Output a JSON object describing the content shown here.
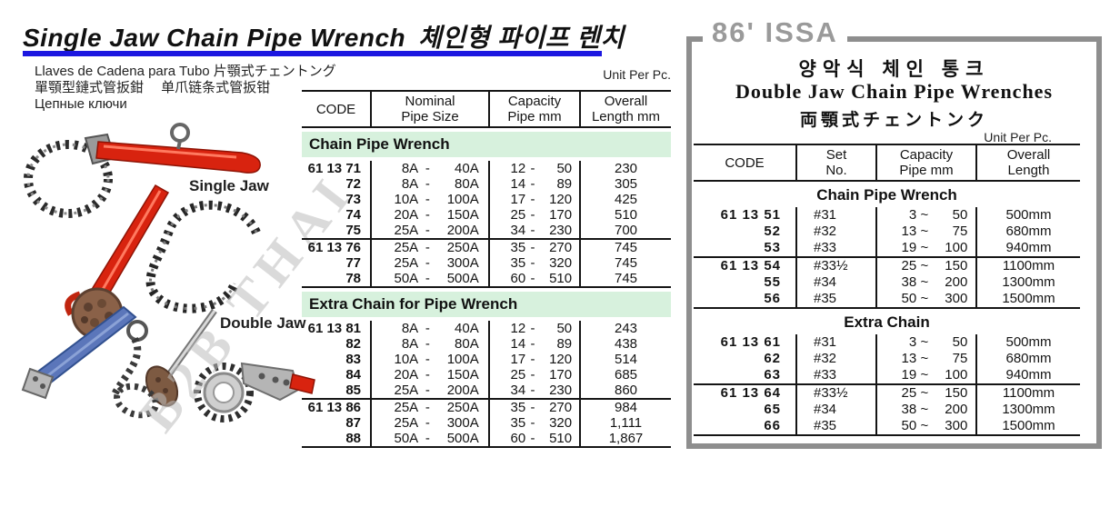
{
  "left": {
    "title_en": "Single Jaw Chain Pipe Wrench",
    "title_ko": "체인형 파이프 렌치",
    "subtitle_es_ja": "Llaves de Cadena para Tubo  片顎式チェントング",
    "subtitle_zh": "單顎型鏈式管扳鉗　 单爪链条式管扳钳",
    "subtitle_ru": "Цепные ключи",
    "unit_label": "Unit Per Pc.",
    "single_jaw_label": "Single Jaw",
    "double_jaw_label": "Double Jaw",
    "watermark": "B2B THAI"
  },
  "colors": {
    "section_green": "#d7f1dd",
    "title_rule_blue": "#1c17e0",
    "box_border_gray": "#8e8e8e",
    "badge_gray": "#9a9a9a",
    "wrench_red": "#d8230f",
    "handle_blue": "#5b76ba"
  },
  "middle_table": {
    "headers": [
      [
        "CODE"
      ],
      [
        "Nominal",
        "Pipe Size"
      ],
      [
        "Capacity",
        "Pipe mm"
      ],
      [
        "Overall",
        "Length mm"
      ]
    ],
    "sections": [
      {
        "title": "Chain Pipe Wrench",
        "groups": [
          {
            "rows": [
              {
                "code": "61 13 71",
                "nominal": [
                  "8A",
                  "40A"
                ],
                "capacity": [
                  "12",
                  "50"
                ],
                "length": "230"
              },
              {
                "code": "72",
                "nominal": [
                  "8A",
                  "80A"
                ],
                "capacity": [
                  "14",
                  "89"
                ],
                "length": "305"
              },
              {
                "code": "73",
                "nominal": [
                  "10A",
                  "100A"
                ],
                "capacity": [
                  "17",
                  "120"
                ],
                "length": "425"
              },
              {
                "code": "74",
                "nominal": [
                  "20A",
                  "150A"
                ],
                "capacity": [
                  "25",
                  "170"
                ],
                "length": "510"
              },
              {
                "code": "75",
                "nominal": [
                  "25A",
                  "200A"
                ],
                "capacity": [
                  "34",
                  "230"
                ],
                "length": "700"
              }
            ]
          },
          {
            "rows": [
              {
                "code": "61 13 76",
                "nominal": [
                  "25A",
                  "250A"
                ],
                "capacity": [
                  "35",
                  "270"
                ],
                "length": "745"
              },
              {
                "code": "77",
                "nominal": [
                  "25A",
                  "300A"
                ],
                "capacity": [
                  "35",
                  "320"
                ],
                "length": "745"
              },
              {
                "code": "78",
                "nominal": [
                  "50A",
                  "500A"
                ],
                "capacity": [
                  "60",
                  "510"
                ],
                "length": "745"
              }
            ]
          }
        ]
      },
      {
        "title": "Extra Chain for Pipe Wrench",
        "groups": [
          {
            "rows": [
              {
                "code": "61 13 81",
                "nominal": [
                  "8A",
                  "40A"
                ],
                "capacity": [
                  "12",
                  "50"
                ],
                "length": "243"
              },
              {
                "code": "82",
                "nominal": [
                  "8A",
                  "80A"
                ],
                "capacity": [
                  "14",
                  "89"
                ],
                "length": "438"
              },
              {
                "code": "83",
                "nominal": [
                  "10A",
                  "100A"
                ],
                "capacity": [
                  "17",
                  "120"
                ],
                "length": "514"
              },
              {
                "code": "84",
                "nominal": [
                  "20A",
                  "150A"
                ],
                "capacity": [
                  "25",
                  "170"
                ],
                "length": "685"
              },
              {
                "code": "85",
                "nominal": [
                  "25A",
                  "200A"
                ],
                "capacity": [
                  "34",
                  "230"
                ],
                "length": "860"
              }
            ]
          },
          {
            "rows": [
              {
                "code": "61 13 86",
                "nominal": [
                  "25A",
                  "250A"
                ],
                "capacity": [
                  "35",
                  "270"
                ],
                "length": "984"
              },
              {
                "code": "87",
                "nominal": [
                  "25A",
                  "300A"
                ],
                "capacity": [
                  "35",
                  "320"
                ],
                "length": "1,111"
              },
              {
                "code": "88",
                "nominal": [
                  "50A",
                  "500A"
                ],
                "capacity": [
                  "60",
                  "510"
                ],
                "length": "1,867"
              }
            ]
          }
        ]
      }
    ]
  },
  "right_panel": {
    "badge": "86' ISSA",
    "title_ko": "양악식 체인 통크",
    "title_en": "Double Jaw Chain Pipe Wrenches",
    "title_ja": "両顎式チェントンク",
    "unit_label": "Unit Per Pc.",
    "table": {
      "headers": [
        [
          "CODE"
        ],
        [
          "Set",
          "No."
        ],
        [
          "Capacity",
          "Pipe mm"
        ],
        [
          "Overall",
          "Length"
        ]
      ],
      "sections": [
        {
          "title": "Chain Pipe Wrench",
          "groups": [
            {
              "rows": [
                {
                  "code": "61 13 51",
                  "set": "#31",
                  "capacity": [
                    "3",
                    "50"
                  ],
                  "length": "500mm"
                },
                {
                  "code": "52",
                  "set": "#32",
                  "capacity": [
                    "13",
                    "75"
                  ],
                  "length": "680mm"
                },
                {
                  "code": "53",
                  "set": "#33",
                  "capacity": [
                    "19",
                    "100"
                  ],
                  "length": "940mm"
                }
              ]
            },
            {
              "rows": [
                {
                  "code": "61 13 54",
                  "set": "#33½",
                  "capacity": [
                    "25",
                    "150"
                  ],
                  "length": "1100mm"
                },
                {
                  "code": "55",
                  "set": "#34",
                  "capacity": [
                    "38",
                    "200"
                  ],
                  "length": "1300mm"
                },
                {
                  "code": "56",
                  "set": "#35",
                  "capacity": [
                    "50",
                    "300"
                  ],
                  "length": "1500mm"
                }
              ]
            }
          ]
        },
        {
          "title": "Extra Chain",
          "groups": [
            {
              "rows": [
                {
                  "code": "61 13 61",
                  "set": "#31",
                  "capacity": [
                    "3",
                    "50"
                  ],
                  "length": "500mm"
                },
                {
                  "code": "62",
                  "set": "#32",
                  "capacity": [
                    "13",
                    "75"
                  ],
                  "length": "680mm"
                },
                {
                  "code": "63",
                  "set": "#33",
                  "capacity": [
                    "19",
                    "100"
                  ],
                  "length": "940mm"
                }
              ]
            },
            {
              "rows": [
                {
                  "code": "61 13 64",
                  "set": "#33½",
                  "capacity": [
                    "25",
                    "150"
                  ],
                  "length": "1100mm"
                },
                {
                  "code": "65",
                  "set": "#34",
                  "capacity": [
                    "38",
                    "200"
                  ],
                  "length": "1300mm"
                },
                {
                  "code": "66",
                  "set": "#35",
                  "capacity": [
                    "50",
                    "300"
                  ],
                  "length": "1500mm"
                }
              ]
            }
          ]
        }
      ]
    }
  }
}
